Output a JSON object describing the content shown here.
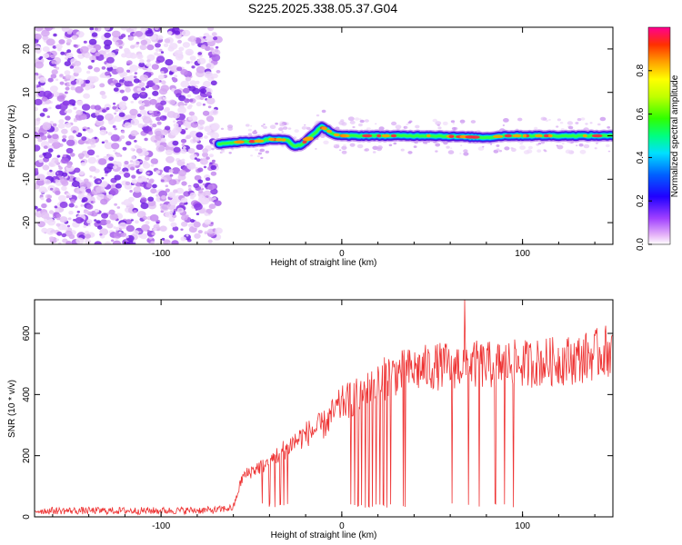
{
  "title": "S225.2025.338.05.37.G04",
  "chart_data": [
    {
      "type": "heatmap",
      "name": "spectrogram",
      "xlabel": "Height of straight line (km)",
      "ylabel": "Frequency (Hz)",
      "xlim": [
        -170,
        150
      ],
      "ylim": [
        -25,
        25
      ],
      "xticks": [
        -100,
        0,
        100
      ],
      "yticks": [
        -20,
        -10,
        0,
        10,
        20
      ],
      "noise_region_x": [
        -170,
        -68
      ],
      "signal_start_x": -68,
      "signal_track": [
        {
          "x": -68,
          "y": -2.0
        },
        {
          "x": -60,
          "y": -1.5
        },
        {
          "x": -45,
          "y": -1.2
        },
        {
          "x": -40,
          "y": -0.8
        },
        {
          "x": -30,
          "y": -1.0
        },
        {
          "x": -26,
          "y": -2.5
        },
        {
          "x": -22,
          "y": -2.0
        },
        {
          "x": -18,
          "y": -0.5
        },
        {
          "x": -14,
          "y": 1.0
        },
        {
          "x": -11,
          "y": 2.0
        },
        {
          "x": -8,
          "y": 1.3
        },
        {
          "x": -4,
          "y": 0.3
        },
        {
          "x": 0,
          "y": 0.0
        },
        {
          "x": 50,
          "y": 0.0
        },
        {
          "x": 80,
          "y": -0.4
        },
        {
          "x": 90,
          "y": 0.0
        },
        {
          "x": 150,
          "y": 0.0
        }
      ],
      "colorbar": {
        "label": "Normalized spectral amplitude",
        "range": [
          0,
          1
        ],
        "ticks": [
          "0.0",
          "0.2",
          "0.4",
          "0.6",
          "0.8"
        ],
        "tick_values": [
          0.0,
          0.2,
          0.4,
          0.6,
          0.8
        ]
      }
    },
    {
      "type": "line",
      "name": "snr",
      "xlabel": "Height of straight line (km)",
      "ylabel": "SNR (10 * v/v)",
      "xlim": [
        -170,
        150
      ],
      "ylim": [
        0,
        710
      ],
      "xticks": [
        -100,
        0,
        100
      ],
      "yticks": [
        0,
        200,
        400,
        600
      ],
      "color": "#ee3333",
      "series": [
        {
          "name": "SNR",
          "x": [
            -170,
            -100,
            -70,
            -60,
            -55,
            -50,
            -40,
            -30,
            -20,
            -10,
            0,
            10,
            20,
            25,
            30,
            40,
            50,
            60,
            70,
            80,
            90,
            100,
            110,
            120,
            130,
            140,
            150
          ],
          "values": [
            20,
            20,
            22,
            30,
            130,
            150,
            180,
            230,
            270,
            300,
            370,
            400,
            430,
            460,
            470,
            480,
            490,
            495,
            500,
            495,
            500,
            500,
            505,
            510,
            515,
            530,
            550
          ],
          "dropouts": [
            -44,
            -40,
            -37,
            -34,
            -32,
            -30,
            5,
            7,
            9,
            11,
            13,
            15,
            17,
            19,
            21,
            23,
            25,
            27,
            34,
            35,
            61,
            70,
            76,
            85,
            90,
            95
          ]
        }
      ]
    }
  ]
}
